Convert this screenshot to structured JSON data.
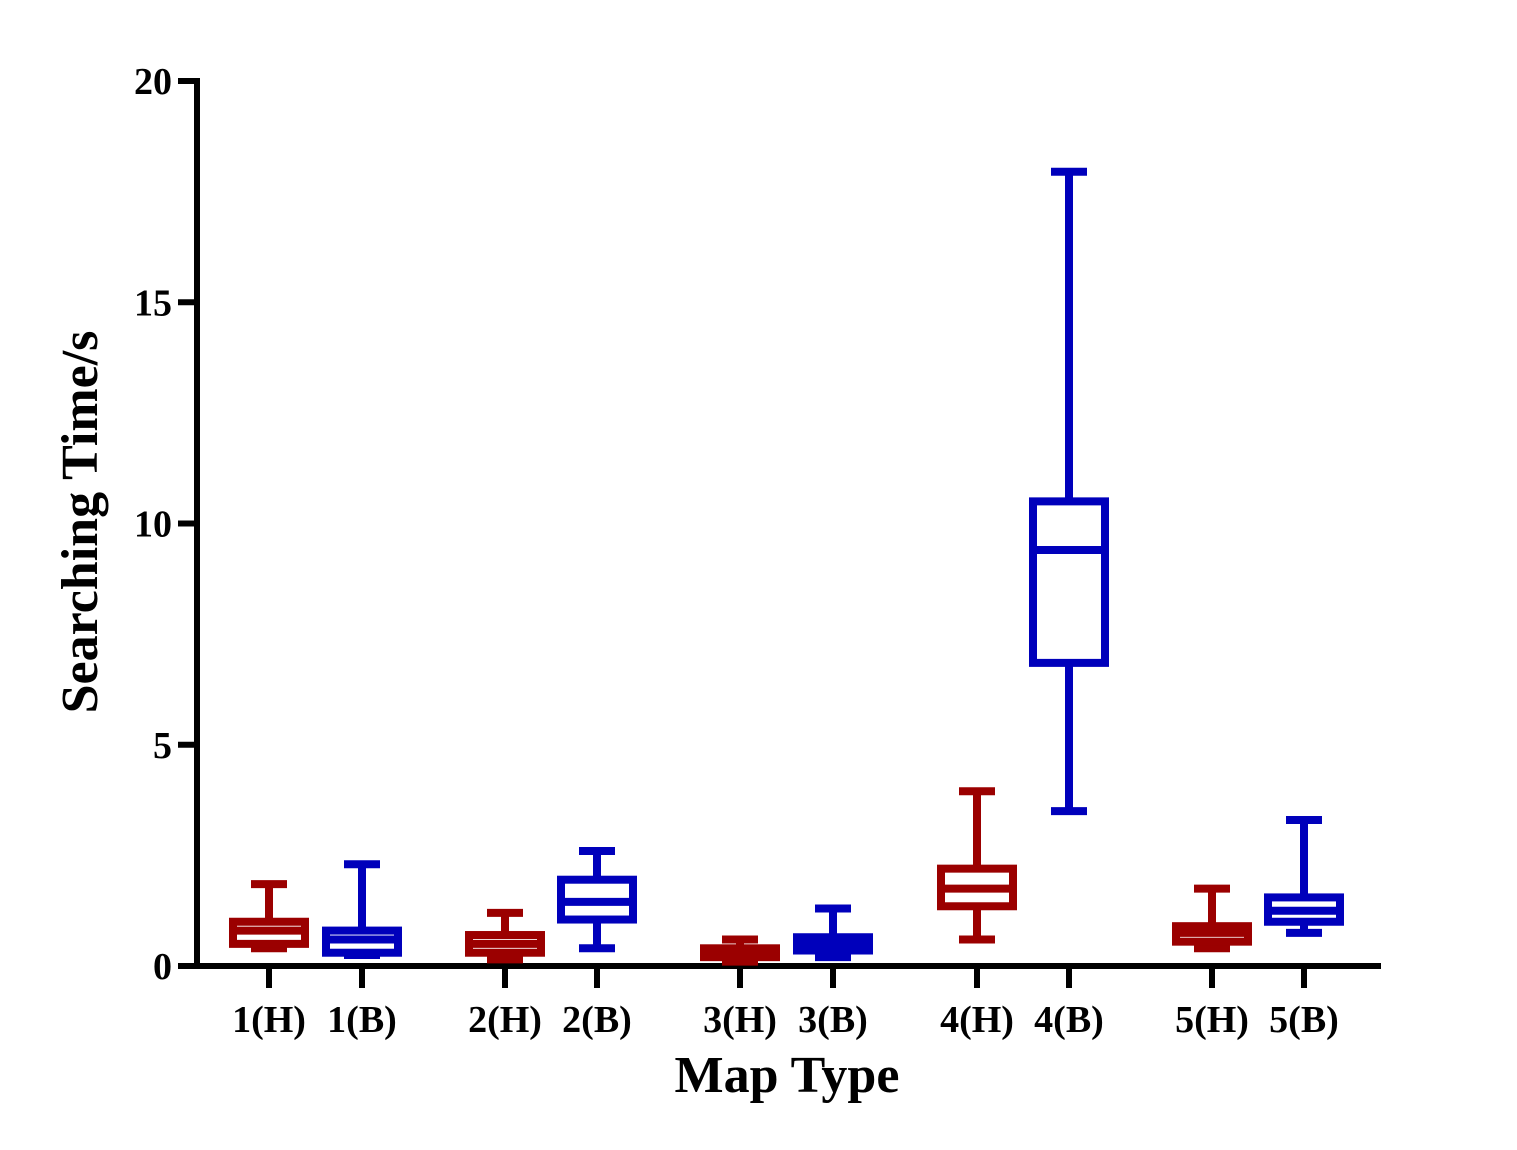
{
  "chart_data": {
    "type": "box",
    "title": "",
    "xlabel": "Map Type",
    "ylabel": "Searching Time/s",
    "ylim": [
      0,
      20
    ],
    "yticks": [
      0,
      5,
      10,
      15,
      20
    ],
    "grid": false,
    "legend": "none",
    "colors": {
      "H": "#9b0000",
      "B": "#0000bb"
    },
    "categories": [
      "1(H)",
      "1(B)",
      "2(H)",
      "2(B)",
      "3(H)",
      "3(B)",
      "4(H)",
      "4(B)",
      "5(H)",
      "5(B)"
    ],
    "boxes": [
      {
        "label": "1(H)",
        "group": "H",
        "min": 0.4,
        "q1": 0.5,
        "median": 0.8,
        "q3": 1.0,
        "max": 1.85
      },
      {
        "label": "1(B)",
        "group": "B",
        "min": 0.25,
        "q1": 0.3,
        "median": 0.6,
        "q3": 0.8,
        "max": 2.3
      },
      {
        "label": "2(H)",
        "group": "H",
        "min": 0.15,
        "q1": 0.3,
        "median": 0.5,
        "q3": 0.7,
        "max": 1.2
      },
      {
        "label": "2(B)",
        "group": "B",
        "min": 0.4,
        "q1": 1.05,
        "median": 1.45,
        "q3": 1.95,
        "max": 2.6
      },
      {
        "label": "3(H)",
        "group": "H",
        "min": 0.1,
        "q1": 0.2,
        "median": 0.3,
        "q3": 0.4,
        "max": 0.6
      },
      {
        "label": "3(B)",
        "group": "B",
        "min": 0.2,
        "q1": 0.35,
        "median": 0.5,
        "q3": 0.65,
        "max": 1.3
      },
      {
        "label": "4(H)",
        "group": "H",
        "min": 0.6,
        "q1": 1.35,
        "median": 1.75,
        "q3": 2.2,
        "max": 3.95
      },
      {
        "label": "4(B)",
        "group": "B",
        "min": 3.5,
        "q1": 6.85,
        "median": 9.4,
        "q3": 10.5,
        "max": 17.95
      },
      {
        "label": "5(H)",
        "group": "H",
        "min": 0.4,
        "q1": 0.55,
        "median": 0.75,
        "q3": 0.9,
        "max": 1.75
      },
      {
        "label": "5(B)",
        "group": "B",
        "min": 0.75,
        "q1": 1.0,
        "median": 1.25,
        "q3": 1.55,
        "max": 3.3
      }
    ]
  }
}
